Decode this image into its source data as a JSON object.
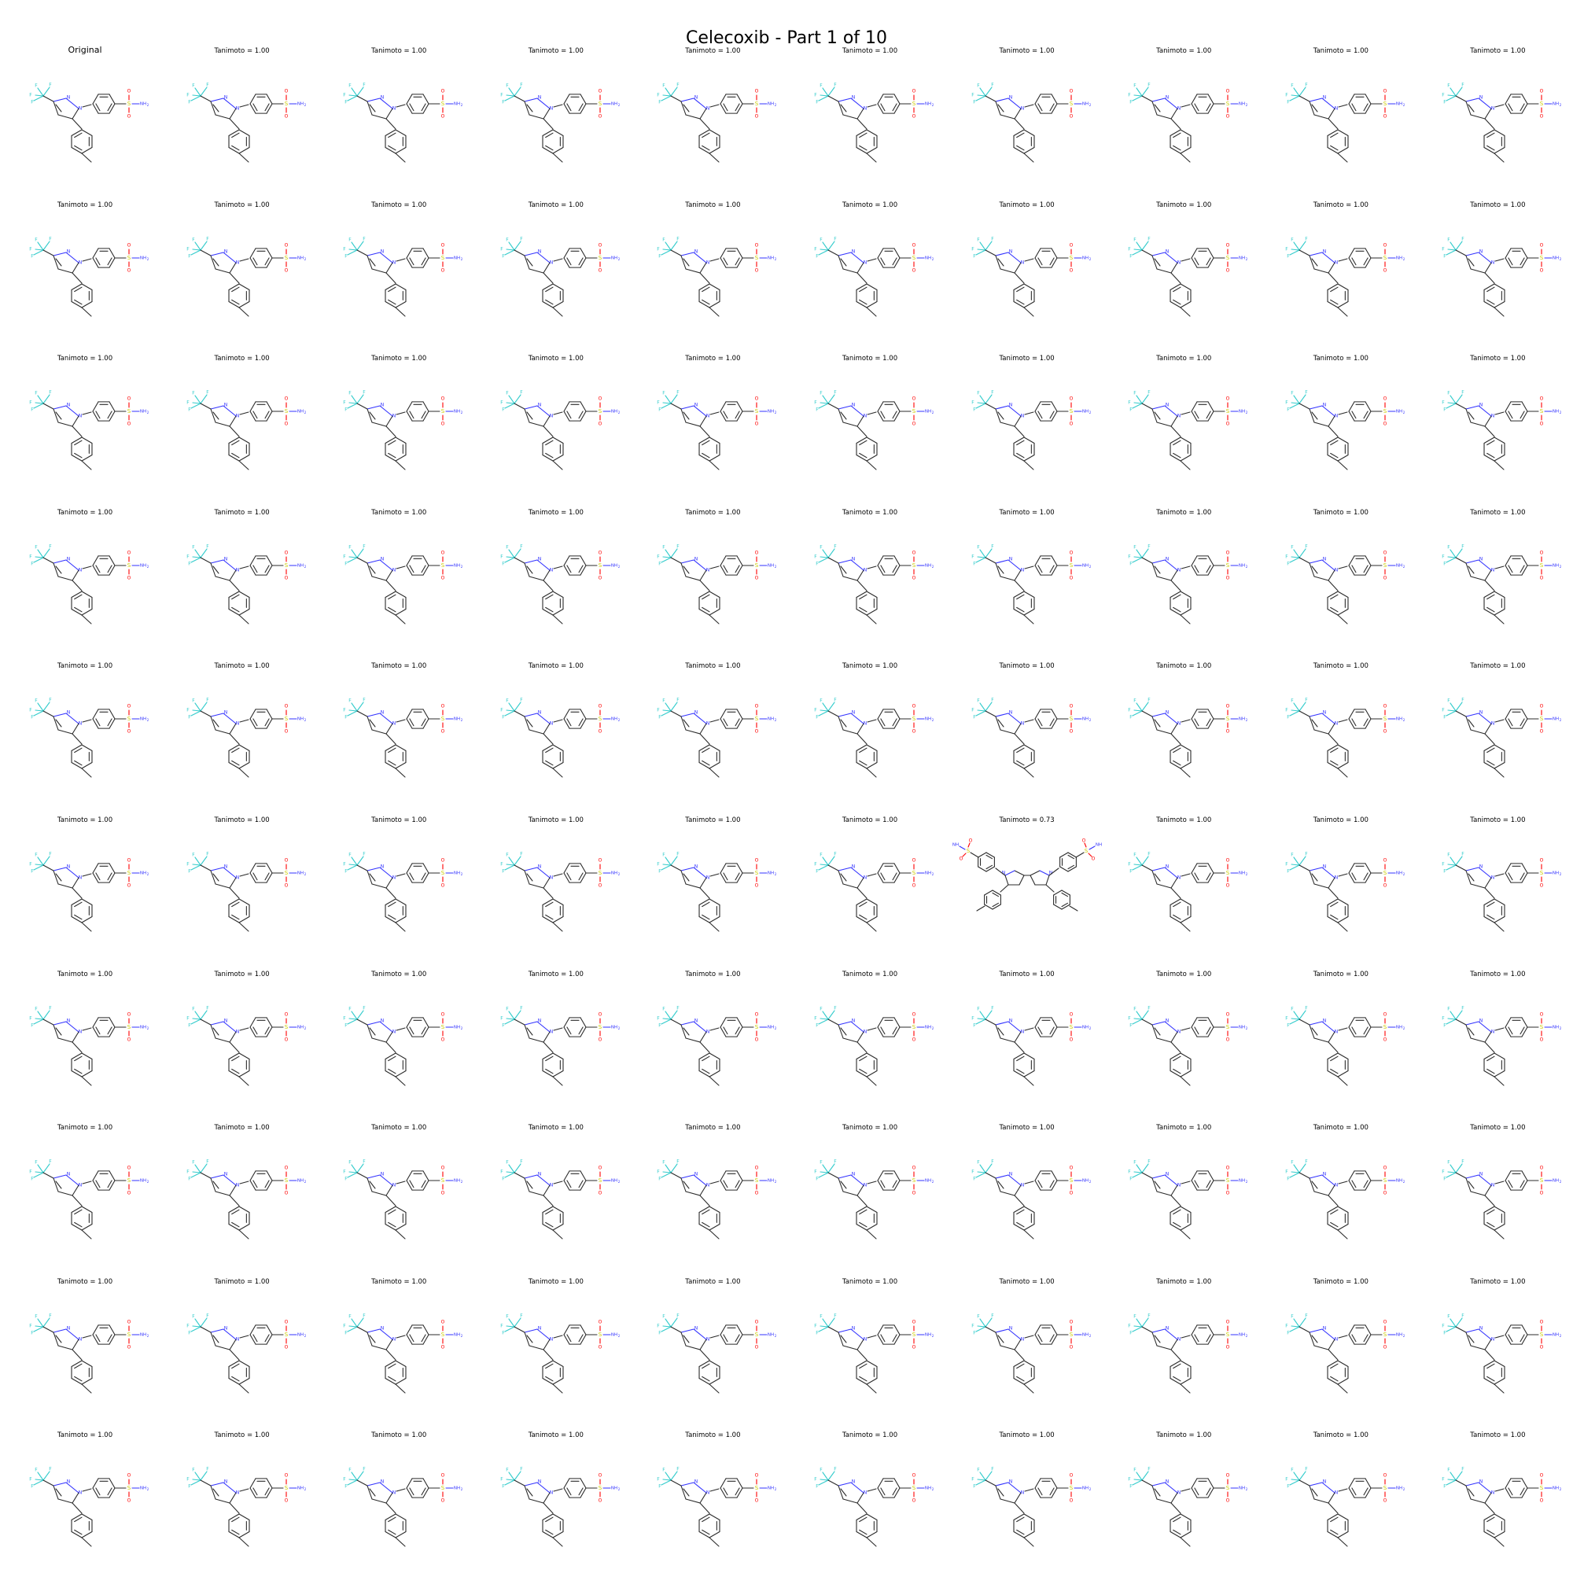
{
  "title": "Celecoxib - Part 1 of 10",
  "grid": {
    "rows": 10,
    "cols": 10
  },
  "cells": [
    {
      "label": "Original",
      "molecule": "celecoxib"
    },
    {
      "label": "Tanimoto = 1.00",
      "molecule": "celecoxib"
    },
    {
      "label": "Tanimoto = 1.00",
      "molecule": "celecoxib"
    },
    {
      "label": "Tanimoto = 1.00",
      "molecule": "celecoxib"
    },
    {
      "label": "Tanimoto = 1.00",
      "molecule": "celecoxib"
    },
    {
      "label": "Tanimoto = 1.00",
      "molecule": "celecoxib"
    },
    {
      "label": "Tanimoto = 1.00",
      "molecule": "celecoxib"
    },
    {
      "label": "Tanimoto = 1.00",
      "molecule": "celecoxib"
    },
    {
      "label": "Tanimoto = 1.00",
      "molecule": "celecoxib"
    },
    {
      "label": "Tanimoto = 1.00",
      "molecule": "celecoxib"
    },
    {
      "label": "Tanimoto = 1.00",
      "molecule": "celecoxib"
    },
    {
      "label": "Tanimoto = 1.00",
      "molecule": "celecoxib"
    },
    {
      "label": "Tanimoto = 1.00",
      "molecule": "celecoxib"
    },
    {
      "label": "Tanimoto = 1.00",
      "molecule": "celecoxib"
    },
    {
      "label": "Tanimoto = 1.00",
      "molecule": "celecoxib"
    },
    {
      "label": "Tanimoto = 1.00",
      "molecule": "celecoxib"
    },
    {
      "label": "Tanimoto = 1.00",
      "molecule": "celecoxib"
    },
    {
      "label": "Tanimoto = 1.00",
      "molecule": "celecoxib"
    },
    {
      "label": "Tanimoto = 1.00",
      "molecule": "celecoxib"
    },
    {
      "label": "Tanimoto = 1.00",
      "molecule": "celecoxib"
    },
    {
      "label": "Tanimoto = 1.00",
      "molecule": "celecoxib"
    },
    {
      "label": "Tanimoto = 1.00",
      "molecule": "celecoxib"
    },
    {
      "label": "Tanimoto = 1.00",
      "molecule": "celecoxib"
    },
    {
      "label": "Tanimoto = 1.00",
      "molecule": "celecoxib"
    },
    {
      "label": "Tanimoto = 1.00",
      "molecule": "celecoxib"
    },
    {
      "label": "Tanimoto = 1.00",
      "molecule": "celecoxib"
    },
    {
      "label": "Tanimoto = 1.00",
      "molecule": "celecoxib"
    },
    {
      "label": "Tanimoto = 1.00",
      "molecule": "celecoxib"
    },
    {
      "label": "Tanimoto = 1.00",
      "molecule": "celecoxib"
    },
    {
      "label": "Tanimoto = 1.00",
      "molecule": "celecoxib"
    },
    {
      "label": "Tanimoto = 1.00",
      "molecule": "celecoxib"
    },
    {
      "label": "Tanimoto = 1.00",
      "molecule": "celecoxib"
    },
    {
      "label": "Tanimoto = 1.00",
      "molecule": "celecoxib"
    },
    {
      "label": "Tanimoto = 1.00",
      "molecule": "celecoxib"
    },
    {
      "label": "Tanimoto = 1.00",
      "molecule": "celecoxib"
    },
    {
      "label": "Tanimoto = 1.00",
      "molecule": "celecoxib"
    },
    {
      "label": "Tanimoto = 1.00",
      "molecule": "celecoxib"
    },
    {
      "label": "Tanimoto = 1.00",
      "molecule": "celecoxib"
    },
    {
      "label": "Tanimoto = 1.00",
      "molecule": "celecoxib"
    },
    {
      "label": "Tanimoto = 1.00",
      "molecule": "celecoxib"
    },
    {
      "label": "Tanimoto = 1.00",
      "molecule": "celecoxib"
    },
    {
      "label": "Tanimoto = 1.00",
      "molecule": "celecoxib"
    },
    {
      "label": "Tanimoto = 1.00",
      "molecule": "celecoxib"
    },
    {
      "label": "Tanimoto = 1.00",
      "molecule": "celecoxib"
    },
    {
      "label": "Tanimoto = 1.00",
      "molecule": "celecoxib"
    },
    {
      "label": "Tanimoto = 1.00",
      "molecule": "celecoxib"
    },
    {
      "label": "Tanimoto = 1.00",
      "molecule": "celecoxib"
    },
    {
      "label": "Tanimoto = 1.00",
      "molecule": "celecoxib"
    },
    {
      "label": "Tanimoto = 1.00",
      "molecule": "celecoxib"
    },
    {
      "label": "Tanimoto = 1.00",
      "molecule": "celecoxib"
    },
    {
      "label": "Tanimoto = 1.00",
      "molecule": "celecoxib"
    },
    {
      "label": "Tanimoto = 1.00",
      "molecule": "celecoxib"
    },
    {
      "label": "Tanimoto = 1.00",
      "molecule": "celecoxib"
    },
    {
      "label": "Tanimoto = 1.00",
      "molecule": "celecoxib"
    },
    {
      "label": "Tanimoto = 1.00",
      "molecule": "celecoxib"
    },
    {
      "label": "Tanimoto = 1.00",
      "molecule": "celecoxib"
    },
    {
      "label": "Tanimoto = 0.73",
      "molecule": "dimer"
    },
    {
      "label": "Tanimoto = 1.00",
      "molecule": "celecoxib"
    },
    {
      "label": "Tanimoto = 1.00",
      "molecule": "celecoxib"
    },
    {
      "label": "Tanimoto = 1.00",
      "molecule": "celecoxib"
    },
    {
      "label": "Tanimoto = 1.00",
      "molecule": "celecoxib"
    },
    {
      "label": "Tanimoto = 1.00",
      "molecule": "celecoxib"
    },
    {
      "label": "Tanimoto = 1.00",
      "molecule": "celecoxib"
    },
    {
      "label": "Tanimoto = 1.00",
      "molecule": "celecoxib"
    },
    {
      "label": "Tanimoto = 1.00",
      "molecule": "celecoxib"
    },
    {
      "label": "Tanimoto = 1.00",
      "molecule": "celecoxib"
    },
    {
      "label": "Tanimoto = 1.00",
      "molecule": "celecoxib"
    },
    {
      "label": "Tanimoto = 1.00",
      "molecule": "celecoxib"
    },
    {
      "label": "Tanimoto = 1.00",
      "molecule": "celecoxib"
    },
    {
      "label": "Tanimoto = 1.00",
      "molecule": "celecoxib"
    },
    {
      "label": "Tanimoto = 1.00",
      "molecule": "celecoxib"
    },
    {
      "label": "Tanimoto = 1.00",
      "molecule": "celecoxib"
    },
    {
      "label": "Tanimoto = 1.00",
      "molecule": "celecoxib"
    },
    {
      "label": "Tanimoto = 1.00",
      "molecule": "celecoxib"
    },
    {
      "label": "Tanimoto = 1.00",
      "molecule": "celecoxib"
    },
    {
      "label": "Tanimoto = 1.00",
      "molecule": "celecoxib"
    },
    {
      "label": "Tanimoto = 1.00",
      "molecule": "celecoxib"
    },
    {
      "label": "Tanimoto = 1.00",
      "molecule": "celecoxib"
    },
    {
      "label": "Tanimoto = 1.00",
      "molecule": "celecoxib"
    },
    {
      "label": "Tanimoto = 1.00",
      "molecule": "celecoxib"
    },
    {
      "label": "Tanimoto = 1.00",
      "molecule": "celecoxib"
    },
    {
      "label": "Tanimoto = 1.00",
      "molecule": "celecoxib"
    },
    {
      "label": "Tanimoto = 1.00",
      "molecule": "celecoxib"
    },
    {
      "label": "Tanimoto = 1.00",
      "molecule": "celecoxib"
    },
    {
      "label": "Tanimoto = 1.00",
      "molecule": "celecoxib"
    },
    {
      "label": "Tanimoto = 1.00",
      "molecule": "celecoxib"
    },
    {
      "label": "Tanimoto = 1.00",
      "molecule": "celecoxib"
    },
    {
      "label": "Tanimoto = 1.00",
      "molecule": "celecoxib"
    },
    {
      "label": "Tanimoto = 1.00",
      "molecule": "celecoxib"
    },
    {
      "label": "Tanimoto = 1.00",
      "molecule": "celecoxib"
    },
    {
      "label": "Tanimoto = 1.00",
      "molecule": "celecoxib"
    },
    {
      "label": "Tanimoto = 1.00",
      "molecule": "celecoxib"
    },
    {
      "label": "Tanimoto = 1.00",
      "molecule": "celecoxib"
    },
    {
      "label": "Tanimoto = 1.00",
      "molecule": "celecoxib"
    },
    {
      "label": "Tanimoto = 1.00",
      "molecule": "celecoxib"
    },
    {
      "label": "Tanimoto = 1.00",
      "molecule": "celecoxib"
    },
    {
      "label": "Tanimoto = 1.00",
      "molecule": "celecoxib"
    },
    {
      "label": "Tanimoto = 1.00",
      "molecule": "celecoxib"
    },
    {
      "label": "Tanimoto = 1.00",
      "molecule": "celecoxib"
    },
    {
      "label": "Tanimoto = 1.00",
      "molecule": "celecoxib"
    }
  ],
  "atom_labels": {
    "F": "F",
    "N": "N",
    "S": "S",
    "O": "O",
    "NH2": "NH",
    "sub2": "2"
  },
  "colors": {
    "bond": "#2b2b2b",
    "fluorine": "#33cccc",
    "nitrogen": "#3333ff",
    "oxygen": "#ff0000",
    "sulfur": "#cccc00"
  }
}
